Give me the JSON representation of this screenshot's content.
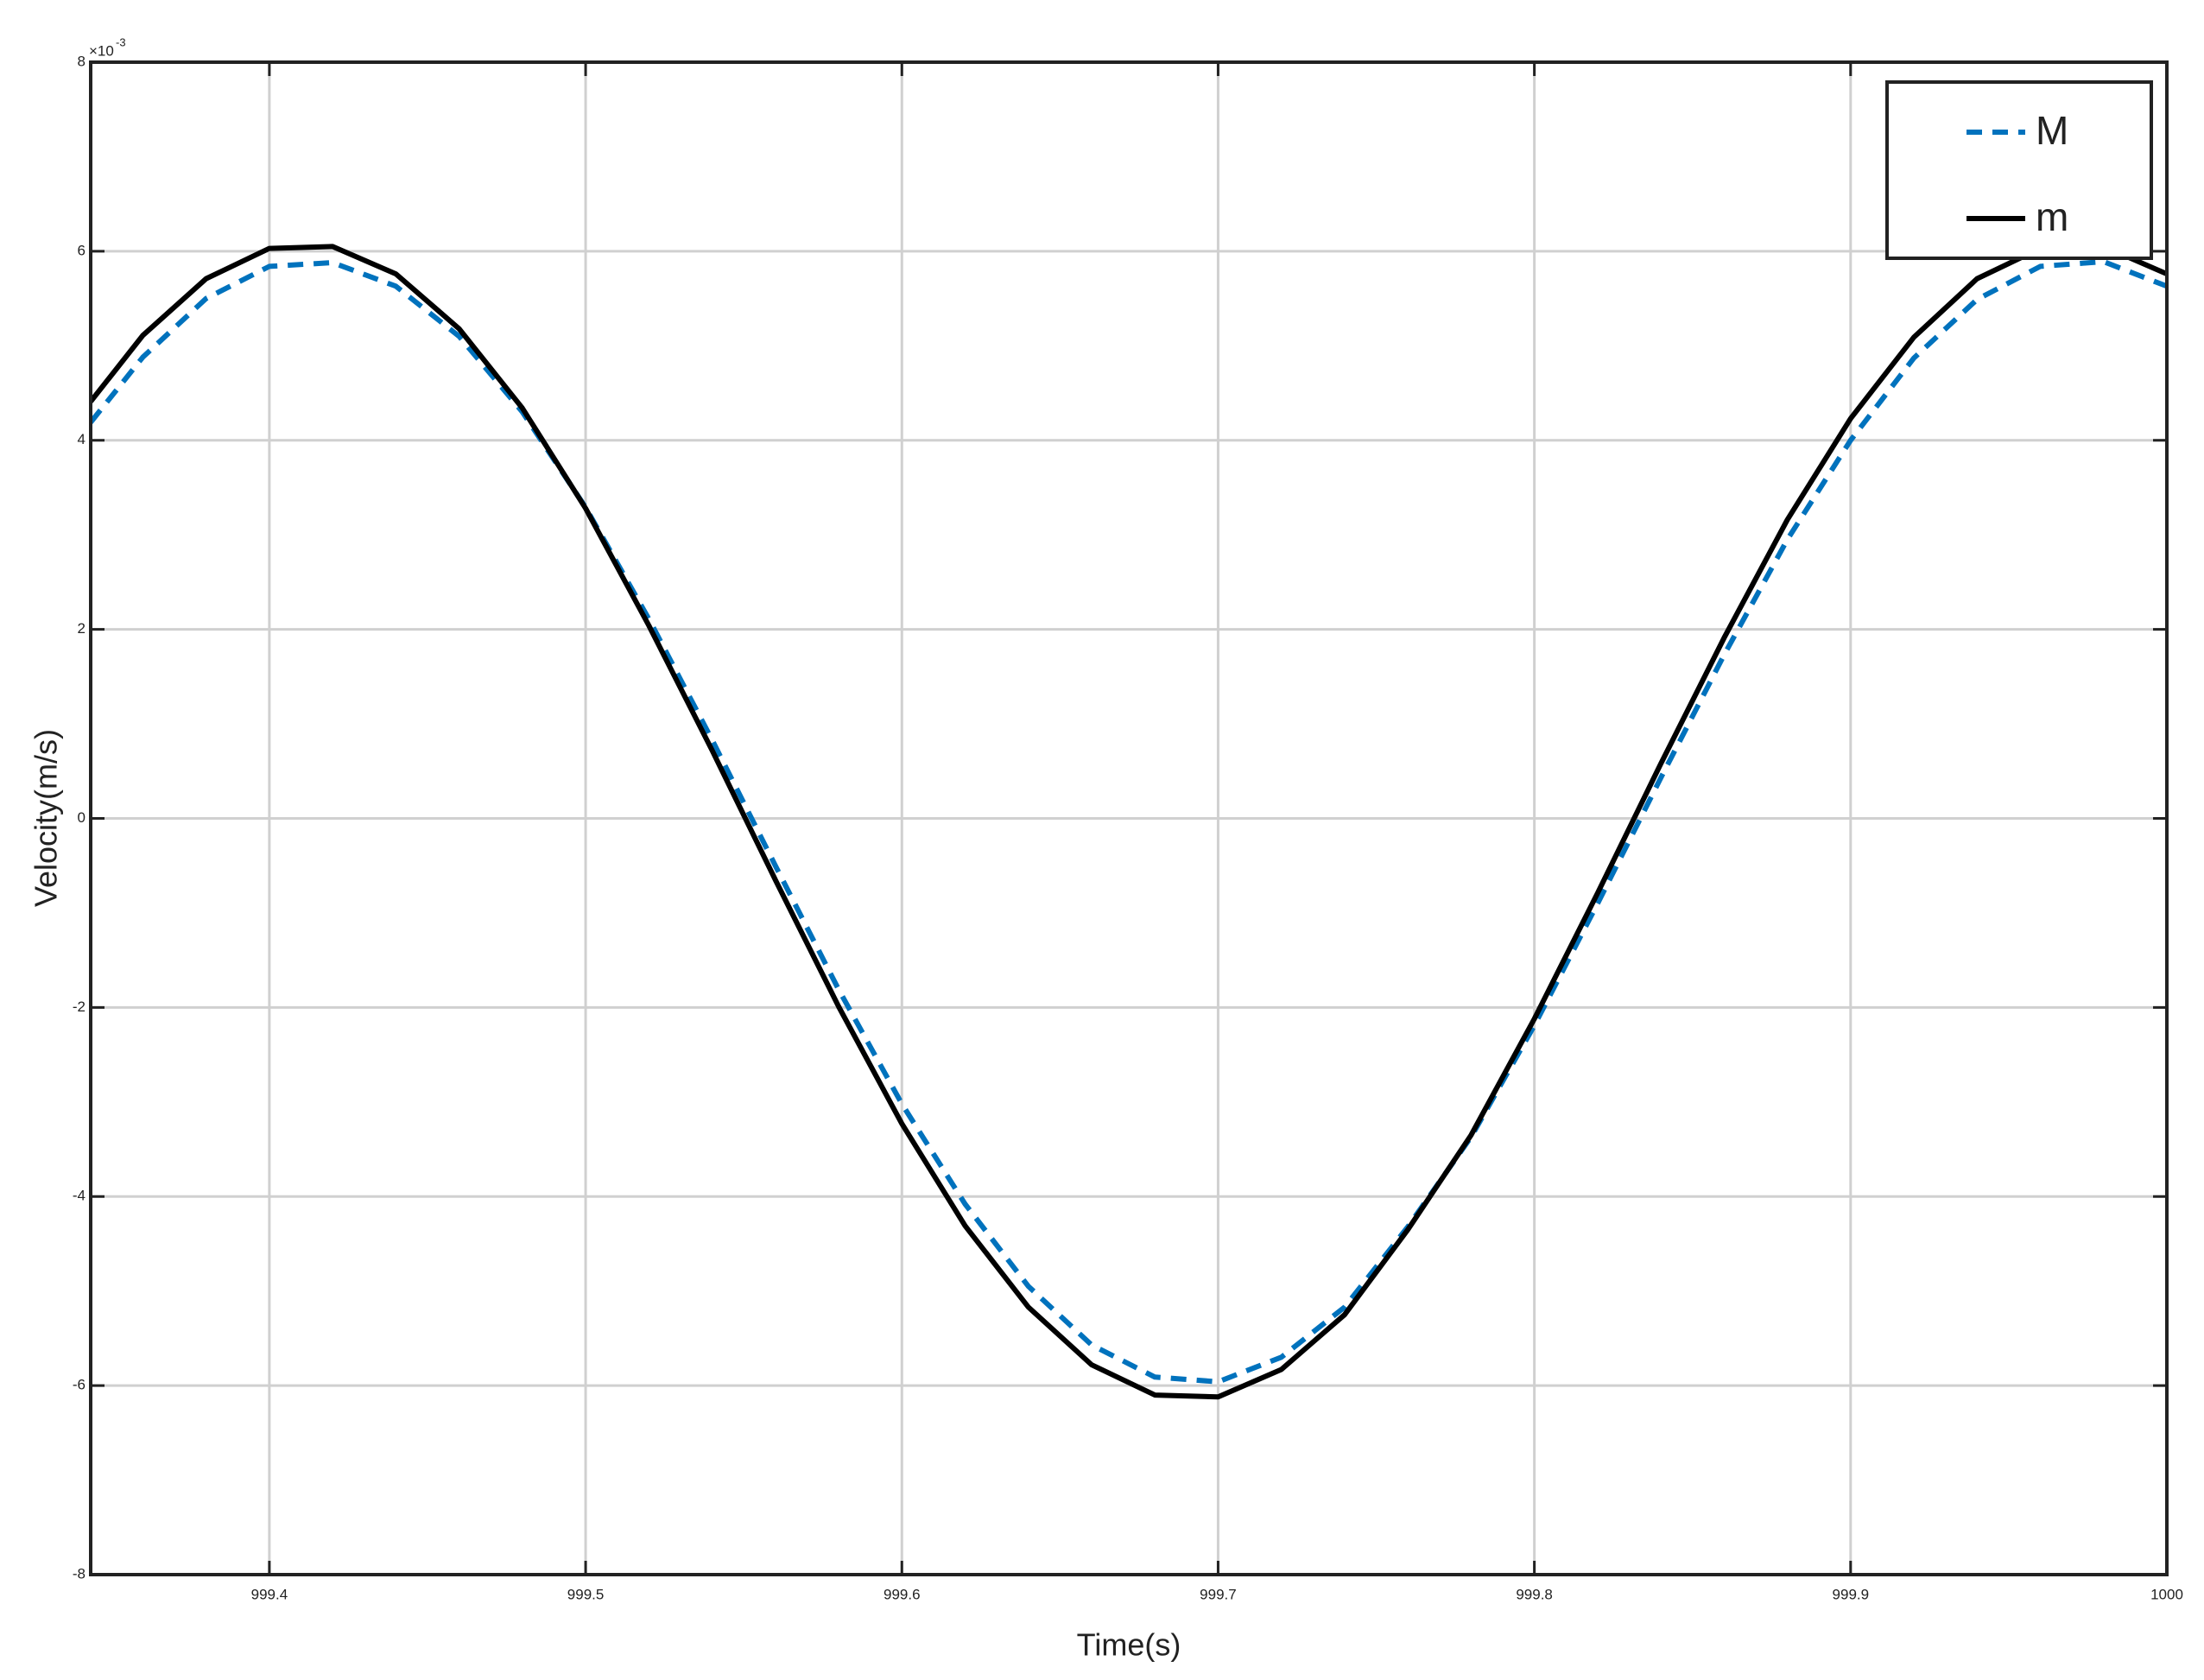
{
  "chart_data": {
    "type": "line",
    "xlabel": "Time(s)",
    "ylabel": "Velocity(m/s)",
    "y_multiplier_label": "×10",
    "y_multiplier_exponent": "-3",
    "x": [
      999.3435,
      999.36,
      999.38,
      999.4,
      999.42,
      999.44,
      999.46,
      999.48,
      999.5,
      999.52,
      999.54,
      999.56,
      999.58,
      999.6,
      999.62,
      999.64,
      999.66,
      999.68,
      999.7,
      999.72,
      999.74,
      999.76,
      999.78,
      999.8,
      999.82,
      999.84,
      999.86,
      999.88,
      999.9,
      999.92,
      999.94,
      999.96,
      999.98,
      1000
    ],
    "series": [
      {
        "name": "M",
        "color": "#0072bd",
        "dashed": true,
        "values": [
          4.19,
          4.88,
          5.5,
          5.84,
          5.88,
          5.63,
          5.1,
          4.3,
          3.29,
          2.11,
          0.83,
          -0.5,
          -1.81,
          -3.02,
          -4.08,
          -4.95,
          -5.57,
          -5.91,
          -5.96,
          -5.7,
          -5.17,
          -4.32,
          -3.37,
          -2.19,
          -0.9,
          0.43,
          1.73,
          2.95,
          4.0,
          4.87,
          5.49,
          5.84,
          5.89,
          5.63
        ]
      },
      {
        "name": "m",
        "color": "#000000",
        "dashed": false,
        "values": [
          4.41,
          5.11,
          5.71,
          6.03,
          6.05,
          5.76,
          5.18,
          4.34,
          3.28,
          2.04,
          0.72,
          -0.65,
          -1.99,
          -3.23,
          -4.31,
          -5.17,
          -5.78,
          -6.1,
          -6.12,
          -5.83,
          -5.25,
          -4.35,
          -3.35,
          -2.12,
          -0.79,
          0.58,
          1.91,
          3.16,
          4.23,
          5.09,
          5.71,
          6.03,
          6.05,
          5.76
        ]
      }
    ],
    "xlim": [
      999.3435,
      1000
    ],
    "xticks": [
      999.4,
      999.5,
      999.6,
      999.7,
      999.8,
      999.9,
      1000
    ],
    "ylim": [
      -8,
      8
    ],
    "yticks": [
      -8,
      -6,
      -4,
      -2,
      0,
      2,
      4,
      6,
      8
    ],
    "grid": true,
    "legend_position": "upper right"
  }
}
